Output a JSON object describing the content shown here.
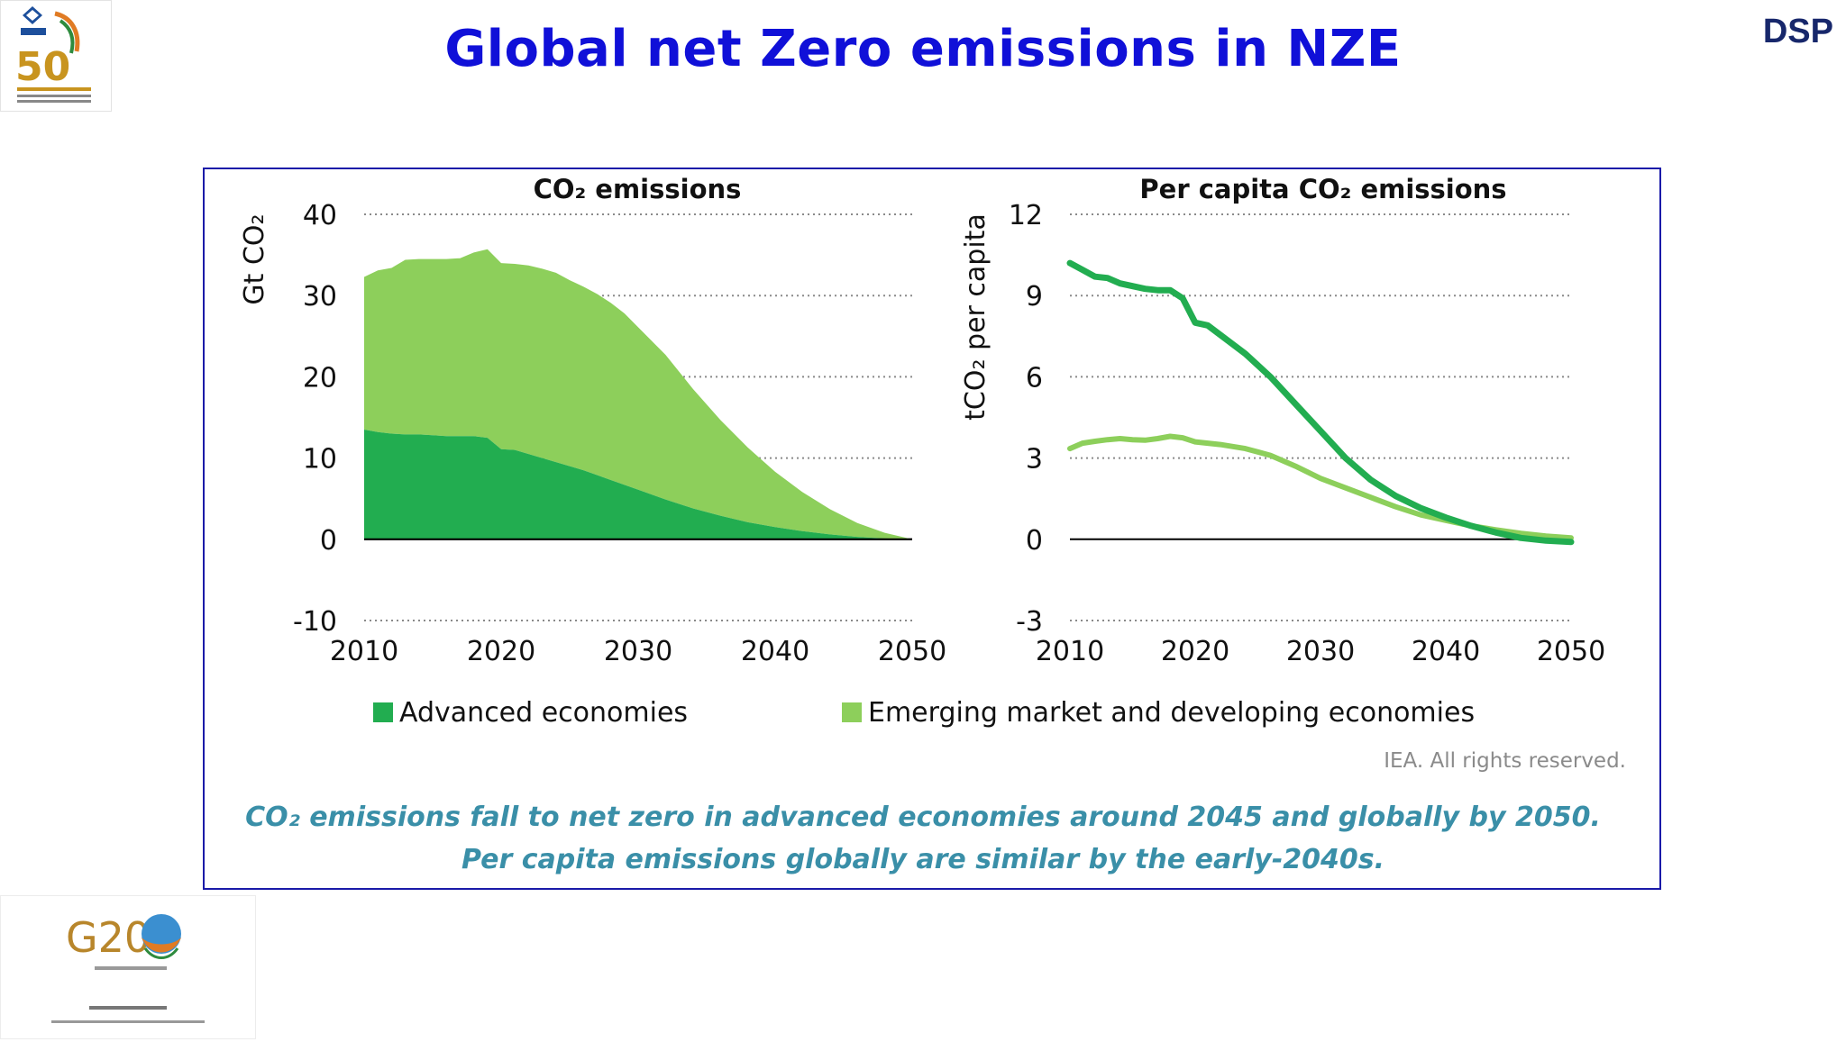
{
  "header": {
    "title": "Global net Zero emissions in NZE",
    "corner_label": "DSP"
  },
  "logos": {
    "top_left": {
      "icon": "sail-50-years-logo",
      "text": "50"
    },
    "bottom_left": {
      "icon": "g20-india-logo",
      "text": "G20"
    }
  },
  "colors": {
    "advanced": "#22ad50",
    "emerging": "#8dcf5b",
    "title": "#1010d8",
    "caption": "#3a8fa8",
    "frame": "#1a1aa8"
  },
  "legend": {
    "advanced": "Advanced economies",
    "emerging": "Emerging market and developing economies"
  },
  "credit": "IEA. All rights reserved.",
  "caption": {
    "line1": "CO₂ emissions fall to net zero in advanced economies around 2045 and globally by 2050.",
    "line2": "Per capita emissions globally are similar by the early-2040s."
  },
  "chart_data": [
    {
      "type": "area",
      "stacked": true,
      "title": "CO₂ emissions",
      "ylabel": "Gt CO₂",
      "xlabel": "",
      "xlim": [
        2010,
        2050
      ],
      "ylim": [
        -10,
        40
      ],
      "xticks": [
        "2010",
        "2020",
        "2030",
        "2040",
        "2050"
      ],
      "yticks": [
        "40",
        "30",
        "20",
        "10",
        "0",
        "-10"
      ],
      "ytick_values": [
        40,
        30,
        20,
        10,
        0,
        -10
      ],
      "grid": "dotted horizontal",
      "x": [
        2010,
        2011,
        2012,
        2013,
        2014,
        2015,
        2016,
        2017,
        2018,
        2019,
        2020,
        2021,
        2022,
        2023,
        2024,
        2025,
        2026,
        2027,
        2028,
        2029,
        2030,
        2032,
        2034,
        2036,
        2038,
        2040,
        2042,
        2044,
        2046,
        2048,
        2050
      ],
      "series": [
        {
          "name": "Advanced economies",
          "values": [
            13.5,
            13.2,
            13.0,
            12.9,
            12.9,
            12.8,
            12.7,
            12.7,
            12.7,
            12.5,
            11.1,
            11.0,
            10.5,
            10.0,
            9.5,
            9.0,
            8.5,
            7.9,
            7.3,
            6.7,
            6.1,
            4.9,
            3.8,
            2.9,
            2.1,
            1.5,
            1.0,
            0.6,
            0.3,
            0.1,
            0.0
          ]
        },
        {
          "name": "Emerging market and developing economies",
          "values": [
            18.8,
            19.9,
            20.4,
            21.5,
            21.6,
            21.7,
            21.8,
            21.9,
            22.6,
            23.2,
            22.9,
            22.9,
            23.2,
            23.3,
            23.3,
            22.9,
            22.6,
            22.3,
            21.8,
            21.1,
            20.0,
            17.8,
            14.7,
            11.8,
            9.2,
            6.8,
            4.8,
            3.1,
            1.7,
            0.7,
            0.0
          ]
        }
      ]
    },
    {
      "type": "line",
      "title": "Per capita CO₂ emissions",
      "ylabel": "tCO₂ per capita",
      "xlabel": "",
      "xlim": [
        2010,
        2050
      ],
      "ylim": [
        -3,
        12
      ],
      "xticks": [
        "2010",
        "2020",
        "2030",
        "2040",
        "2050"
      ],
      "yticks": [
        "12",
        "9",
        "6",
        "3",
        "0",
        "-3"
      ],
      "ytick_values": [
        12,
        9,
        6,
        3,
        0,
        -3
      ],
      "grid": "dotted horizontal",
      "x": [
        2010,
        2011,
        2012,
        2013,
        2014,
        2015,
        2016,
        2017,
        2018,
        2019,
        2020,
        2021,
        2022,
        2024,
        2026,
        2028,
        2030,
        2032,
        2034,
        2036,
        2038,
        2040,
        2042,
        2044,
        2046,
        2048,
        2050
      ],
      "series": [
        {
          "name": "Advanced economies",
          "values": [
            10.2,
            9.95,
            9.7,
            9.65,
            9.45,
            9.35,
            9.25,
            9.2,
            9.2,
            8.9,
            8.0,
            7.9,
            7.55,
            6.85,
            6.0,
            5.0,
            4.0,
            3.0,
            2.2,
            1.6,
            1.15,
            0.8,
            0.5,
            0.25,
            0.05,
            -0.05,
            -0.1
          ]
        },
        {
          "name": "Emerging market and developing economies",
          "values": [
            3.35,
            3.55,
            3.62,
            3.68,
            3.72,
            3.68,
            3.66,
            3.72,
            3.8,
            3.75,
            3.6,
            3.55,
            3.5,
            3.35,
            3.1,
            2.7,
            2.25,
            1.9,
            1.55,
            1.2,
            0.9,
            0.7,
            0.5,
            0.35,
            0.22,
            0.12,
            0.05
          ]
        }
      ]
    }
  ]
}
